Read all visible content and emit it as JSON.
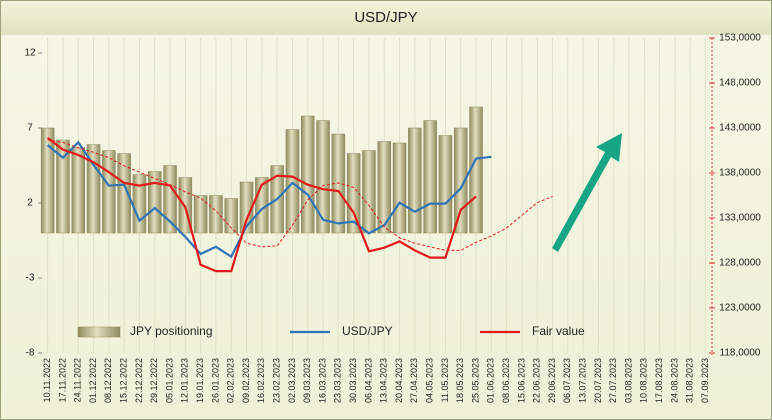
{
  "chart_data": {
    "type": "bar",
    "title": "USD/JPY",
    "categories": [
      "10.11.2022",
      "17.11.2022",
      "24.11.2022",
      "01.12.2022",
      "08.12.2022",
      "15.12.2022",
      "22.12.2022",
      "29.12.2022",
      "05.01.2023",
      "12.01.2023",
      "19.01.2023",
      "26.01.2023",
      "02.02.2023",
      "09.02.2023",
      "16.02.2023",
      "23.02.2023",
      "02.03.2023",
      "09.03.2023",
      "16.03.2023",
      "23.03.2023",
      "30.03.2023",
      "06.04.2023",
      "13.04.2023",
      "20.04.2023",
      "27.04.2023",
      "04.05.2023",
      "11.05.2023",
      "18.05.2023",
      "25.05.2023",
      "01.06.2023",
      "08.06.2023",
      "15.06.2023",
      "22.06.2023",
      "29.06.2023",
      "06.07.2023",
      "13.07.2023",
      "20.07.2023",
      "27.07.2023",
      "03.08.2023",
      "10.08.2023",
      "17.08.2023",
      "24.08.2023",
      "31.08.2023",
      "07.09.2023"
    ],
    "series": [
      {
        "name": "JPY positioning",
        "type": "bar",
        "color": "#b9b48c",
        "values": [
          7.0,
          6.2,
          5.7,
          5.9,
          5.5,
          5.3,
          3.9,
          4.1,
          4.5,
          3.7,
          2.5,
          2.5,
          2.3,
          3.4,
          3.7,
          4.5,
          6.9,
          7.8,
          7.5,
          6.6,
          5.3,
          5.5,
          6.1,
          6.0,
          7.0,
          7.5,
          6.5,
          7.0,
          8.4,
          null,
          null,
          null,
          null,
          null,
          null,
          null,
          null,
          null,
          null,
          null,
          null,
          null,
          null,
          null
        ]
      },
      {
        "name": "USD/JPY",
        "type": "line",
        "axis": "y2",
        "color": "#2e75b6",
        "values": [
          141.1,
          139.7,
          141.4,
          138.9,
          136.6,
          136.7,
          132.7,
          134.1,
          132.6,
          130.9,
          129.0,
          129.8,
          128.7,
          132.1,
          134.0,
          135.1,
          136.9,
          135.6,
          132.8,
          132.4,
          132.6,
          131.3,
          132.2,
          134.7,
          133.7,
          134.6,
          134.6,
          136.3,
          139.6,
          139.8,
          null,
          null,
          null,
          null,
          null,
          null,
          null,
          null,
          null,
          null,
          null,
          null,
          null,
          null
        ]
      },
      {
        "name": "Fair value",
        "type": "line",
        "axis": "y2",
        "color": "#e3191c",
        "values": [
          141.9,
          140.6,
          140.0,
          139.2,
          138.1,
          136.9,
          136.6,
          136.9,
          136.6,
          134.2,
          127.8,
          127.1,
          127.1,
          132.8,
          136.7,
          137.7,
          137.6,
          136.7,
          136.2,
          136.0,
          133.6,
          129.3,
          129.7,
          130.4,
          129.4,
          128.6,
          128.6,
          133.9,
          135.4,
          null,
          null,
          null,
          null,
          null,
          null,
          null,
          null,
          null,
          null,
          null,
          null,
          null,
          null,
          null
        ]
      },
      {
        "type": "line",
        "axis": "y2",
        "color": "#e3191c",
        "dashed": true,
        "values": [
          141.7,
          141.4,
          140.8,
          140.3,
          139.7,
          138.8,
          138.1,
          137.4,
          136.7,
          135.9,
          135.2,
          133.8,
          131.9,
          130.2,
          129.8,
          129.9,
          132.2,
          135.0,
          136.6,
          136.9,
          136.4,
          134.4,
          132.0,
          130.8,
          130.2,
          129.8,
          129.4,
          129.4,
          130.3,
          131.0,
          131.9,
          133.3,
          134.7,
          135.4,
          null,
          null,
          null,
          null,
          null,
          null,
          null,
          null,
          null,
          null
        ]
      }
    ],
    "ylim": [
      -8,
      13
    ],
    "yticks": [
      12,
      7,
      2,
      -3,
      -8
    ],
    "y2lim": [
      118,
      153
    ],
    "y2ticks": [
      {
        "value": 153,
        "label": "153,0000"
      },
      {
        "value": 148,
        "label": "148,0000"
      },
      {
        "value": 143,
        "label": "143,0000"
      },
      {
        "value": 138,
        "label": "138,0000"
      },
      {
        "value": 133,
        "label": "133,0000"
      },
      {
        "value": 128,
        "label": "128,0000"
      },
      {
        "value": 123,
        "label": "123,0000"
      },
      {
        "value": 118,
        "label": "118,0000"
      }
    ]
  }
}
